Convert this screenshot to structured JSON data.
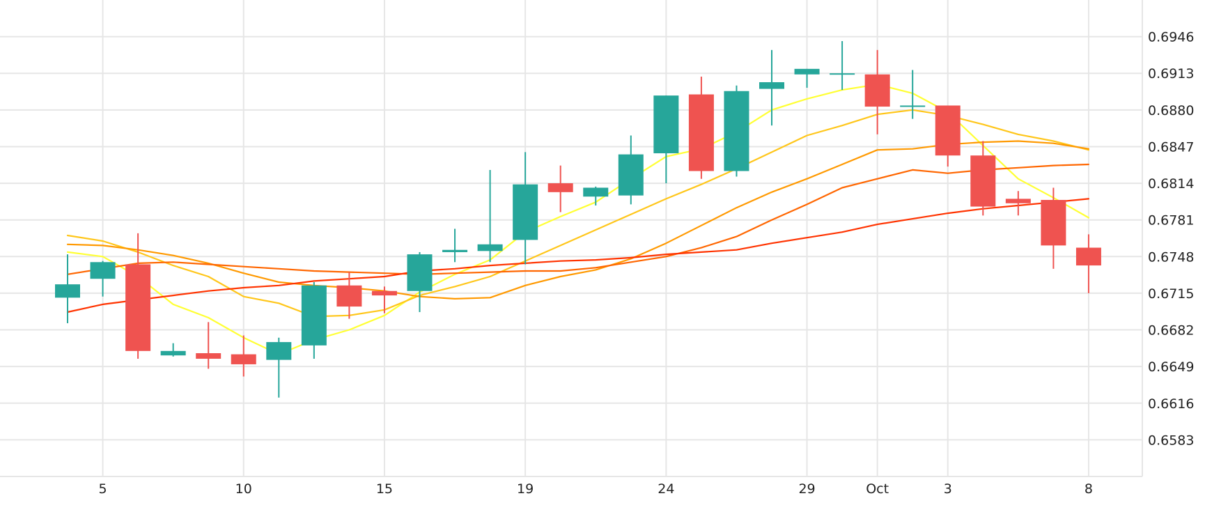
{
  "chart_data": {
    "type": "candlestick",
    "title": "",
    "xlabel": "",
    "ylabel": "",
    "x_ticks": [
      {
        "label": "5",
        "index": 1
      },
      {
        "label": "10",
        "index": 5
      },
      {
        "label": "15",
        "index": 9
      },
      {
        "label": "19",
        "index": 13
      },
      {
        "label": "24",
        "index": 17
      },
      {
        "label": "29",
        "index": 21
      },
      {
        "label": "Oct",
        "index": 23
      },
      {
        "label": "3",
        "index": 25
      },
      {
        "label": "8",
        "index": 29
      }
    ],
    "y_ticks": [
      "0.6946",
      "0.6913",
      "0.6880",
      "0.6847",
      "0.6814",
      "0.6781",
      "0.6748",
      "0.6715",
      "0.6682",
      "0.6649",
      "0.6616",
      "0.6583"
    ],
    "ylim": [
      0.655,
      0.6979
    ],
    "grid": true,
    "up_color": "#26a69a",
    "down_color": "#ef5350",
    "candles": [
      {
        "open": 0.6711,
        "high": 0.675,
        "low": 0.6688,
        "close": 0.6723
      },
      {
        "open": 0.6728,
        "high": 0.6744,
        "low": 0.6712,
        "close": 0.6743
      },
      {
        "open": 0.6741,
        "high": 0.6769,
        "low": 0.6656,
        "close": 0.6663
      },
      {
        "open": 0.6659,
        "high": 0.667,
        "low": 0.6658,
        "close": 0.6663
      },
      {
        "open": 0.6661,
        "high": 0.6689,
        "low": 0.6647,
        "close": 0.6656
      },
      {
        "open": 0.666,
        "high": 0.6677,
        "low": 0.664,
        "close": 0.6651
      },
      {
        "open": 0.6655,
        "high": 0.6675,
        "low": 0.6621,
        "close": 0.6671
      },
      {
        "open": 0.6668,
        "high": 0.6725,
        "low": 0.6656,
        "close": 0.6722
      },
      {
        "open": 0.6722,
        "high": 0.6734,
        "low": 0.6692,
        "close": 0.6703
      },
      {
        "open": 0.6717,
        "high": 0.6721,
        "low": 0.6697,
        "close": 0.6713
      },
      {
        "open": 0.6717,
        "high": 0.6752,
        "low": 0.6698,
        "close": 0.675
      },
      {
        "open": 0.6752,
        "high": 0.6773,
        "low": 0.6743,
        "close": 0.6754
      },
      {
        "open": 0.6753,
        "high": 0.6826,
        "low": 0.6743,
        "close": 0.6759
      },
      {
        "open": 0.6763,
        "high": 0.6842,
        "low": 0.6741,
        "close": 0.6813
      },
      {
        "open": 0.6814,
        "high": 0.683,
        "low": 0.6788,
        "close": 0.6806
      },
      {
        "open": 0.6802,
        "high": 0.6811,
        "low": 0.6794,
        "close": 0.681
      },
      {
        "open": 0.6803,
        "high": 0.6857,
        "low": 0.6795,
        "close": 0.684
      },
      {
        "open": 0.6841,
        "high": 0.6893,
        "low": 0.6814,
        "close": 0.6893
      },
      {
        "open": 0.6894,
        "high": 0.691,
        "low": 0.6818,
        "close": 0.6825
      },
      {
        "open": 0.6825,
        "high": 0.6902,
        "low": 0.682,
        "close": 0.6897
      },
      {
        "open": 0.6899,
        "high": 0.6934,
        "low": 0.6866,
        "close": 0.6905
      },
      {
        "open": 0.6912,
        "high": 0.6917,
        "low": 0.69,
        "close": 0.6917
      },
      {
        "open": 0.6913,
        "high": 0.6942,
        "low": 0.6898,
        "close": 0.6913
      },
      {
        "open": 0.6912,
        "high": 0.6934,
        "low": 0.6858,
        "close": 0.6883
      },
      {
        "open": 0.6884,
        "high": 0.6916,
        "low": 0.6872,
        "close": 0.6884
      },
      {
        "open": 0.6884,
        "high": 0.6883,
        "low": 0.6829,
        "close": 0.6839
      },
      {
        "open": 0.6839,
        "high": 0.6852,
        "low": 0.6785,
        "close": 0.6793
      },
      {
        "open": 0.68,
        "high": 0.6807,
        "low": 0.6785,
        "close": 0.6796
      },
      {
        "open": 0.6799,
        "high": 0.681,
        "low": 0.6737,
        "close": 0.6758
      },
      {
        "open": 0.6756,
        "high": 0.6768,
        "low": 0.6715,
        "close": 0.674
      }
    ],
    "series": [
      {
        "type": "line",
        "color": "#ffff33",
        "values": [
          0.6752,
          0.6748,
          0.673,
          0.6705,
          0.6693,
          0.6675,
          0.666,
          0.6673,
          0.6682,
          0.6695,
          0.6716,
          0.6732,
          0.6745,
          0.677,
          0.6784,
          0.6797,
          0.6818,
          0.6838,
          0.6845,
          0.686,
          0.688,
          0.689,
          0.6898,
          0.6903,
          0.6895,
          0.6878,
          0.6848,
          0.6818,
          0.6801,
          0.6783
        ]
      },
      {
        "type": "line",
        "color": "#ffc61a",
        "values": [
          0.6767,
          0.6762,
          0.6752,
          0.674,
          0.673,
          0.6712,
          0.6706,
          0.6694,
          0.6695,
          0.67,
          0.6713,
          0.6721,
          0.673,
          0.6744,
          0.6758,
          0.6772,
          0.6786,
          0.68,
          0.6813,
          0.6827,
          0.6842,
          0.6857,
          0.6866,
          0.6876,
          0.688,
          0.6875,
          0.6867,
          0.6858,
          0.6852,
          0.6844
        ]
      },
      {
        "type": "line",
        "color": "#ff9900",
        "values": [
          0.6759,
          0.6758,
          0.6754,
          0.6749,
          0.6742,
          0.6733,
          0.6725,
          0.6722,
          0.672,
          0.6717,
          0.6712,
          0.671,
          0.6711,
          0.6722,
          0.673,
          0.6736,
          0.6746,
          0.676,
          0.6776,
          0.6792,
          0.6806,
          0.6818,
          0.6831,
          0.6844,
          0.6845,
          0.6849,
          0.6851,
          0.6852,
          0.685,
          0.6845
        ]
      },
      {
        "type": "line",
        "color": "#ff6600",
        "values": [
          0.6732,
          0.6737,
          0.6742,
          0.6743,
          0.6741,
          0.6739,
          0.6737,
          0.6735,
          0.6734,
          0.6733,
          0.6732,
          0.6733,
          0.6734,
          0.6735,
          0.6735,
          0.6738,
          0.6743,
          0.6748,
          0.6756,
          0.6766,
          0.6781,
          0.6795,
          0.681,
          0.6818,
          0.6826,
          0.6823,
          0.6826,
          0.6828,
          0.683,
          0.6831
        ]
      },
      {
        "type": "line",
        "color": "#ff3300",
        "values": [
          0.6698,
          0.6705,
          0.6709,
          0.6713,
          0.6717,
          0.672,
          0.6722,
          0.6726,
          0.6728,
          0.673,
          0.6735,
          0.6737,
          0.674,
          0.6742,
          0.6744,
          0.6745,
          0.6747,
          0.675,
          0.6752,
          0.6754,
          0.676,
          0.6765,
          0.677,
          0.6777,
          0.6782,
          0.6787,
          0.6791,
          0.6794,
          0.6797,
          0.68
        ]
      }
    ]
  }
}
